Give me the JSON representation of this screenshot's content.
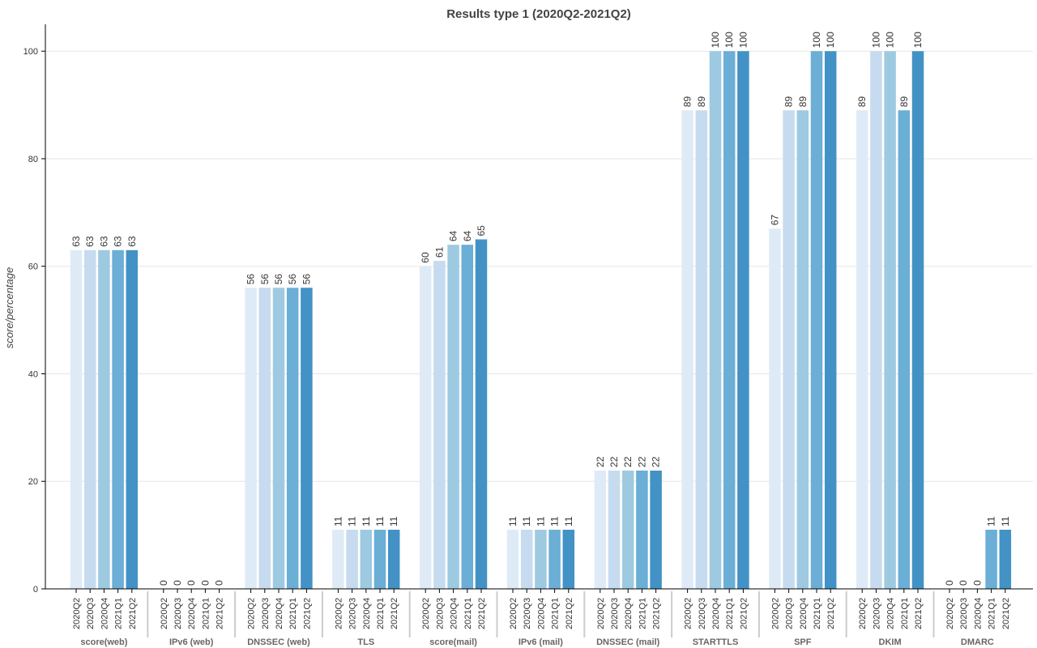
{
  "chart_data": {
    "type": "bar",
    "title": "Results type 1 (2020Q2-2021Q2)",
    "ylabel": "score/percentage",
    "xlabel": "",
    "ylim": [
      0,
      105
    ],
    "yticks": [
      0,
      20,
      40,
      60,
      80,
      100
    ],
    "grid": "horizontal",
    "periods": [
      "2020Q2",
      "2020Q3",
      "2020Q4",
      "2021Q1",
      "2021Q2"
    ],
    "colors": [
      "#deebf7",
      "#c6dbef",
      "#9ecae1",
      "#6baed6",
      "#4292c6"
    ],
    "groups": [
      {
        "label": "score(web)",
        "values": [
          63,
          63,
          63,
          63,
          63
        ]
      },
      {
        "label": "IPv6 (web)",
        "values": [
          0,
          0,
          0,
          0,
          0
        ]
      },
      {
        "label": "DNSSEC (web)",
        "values": [
          56,
          56,
          56,
          56,
          56
        ]
      },
      {
        "label": "TLS",
        "values": [
          11,
          11,
          11,
          11,
          11
        ]
      },
      {
        "label": "score(mail)",
        "values": [
          60,
          61,
          64,
          64,
          65
        ]
      },
      {
        "label": "IPv6 (mail)",
        "values": [
          11,
          11,
          11,
          11,
          11
        ]
      },
      {
        "label": "DNSSEC (mail)",
        "values": [
          22,
          22,
          22,
          22,
          22
        ]
      },
      {
        "label": "STARTTLS",
        "values": [
          89,
          89,
          100,
          100,
          100
        ]
      },
      {
        "label": "SPF",
        "values": [
          67,
          89,
          89,
          100,
          100
        ]
      },
      {
        "label": "DKIM",
        "values": [
          89,
          100,
          100,
          89,
          100
        ]
      },
      {
        "label": "DMARC",
        "values": [
          0,
          0,
          0,
          11,
          11
        ]
      }
    ]
  }
}
